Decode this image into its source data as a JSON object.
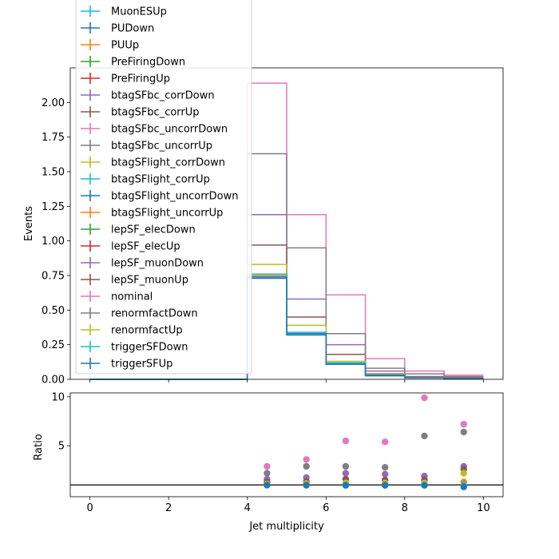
{
  "chart_data": [
    {
      "type": "step",
      "xlabel": "",
      "ylabel": "Events",
      "xlim": [
        -0.5,
        10.5
      ],
      "ylim": [
        0,
        2.25
      ],
      "bin_edges": [
        0,
        1,
        2,
        3,
        4,
        5,
        6,
        7,
        8,
        9,
        10
      ],
      "yticks": [
        "0.00",
        "0.25",
        "0.50",
        "0.75",
        "1.00",
        "1.25",
        "1.50",
        "1.75",
        "2.00"
      ],
      "series": [
        {
          "name": "MuonESUp",
          "color": "#17becf",
          "values": [
            0,
            0,
            0,
            0,
            0.74,
            0.33,
            0.11,
            0.03,
            0.01,
            0.005
          ]
        },
        {
          "name": "PUDown",
          "color": "#1f77b4",
          "values": [
            0,
            0,
            0,
            0,
            0.73,
            0.32,
            0.11,
            0.025,
            0.01,
            0.004
          ]
        },
        {
          "name": "PUUp",
          "color": "#ff7f0e",
          "values": [
            0,
            0,
            0,
            0,
            0.75,
            0.33,
            0.12,
            0.03,
            0.01,
            0.005
          ]
        },
        {
          "name": "PreFiringDown",
          "color": "#2ca02c",
          "values": [
            0,
            0,
            0,
            0,
            0.74,
            0.33,
            0.11,
            0.03,
            0.01,
            0.005
          ]
        },
        {
          "name": "PreFiringUp",
          "color": "#d62728",
          "values": [
            0,
            0,
            0,
            0,
            0.74,
            0.33,
            0.11,
            0.03,
            0.01,
            0.005
          ]
        },
        {
          "name": "btagSFbc_corrDown",
          "color": "#9467bd",
          "values": [
            0,
            0,
            0,
            0,
            1.19,
            0.58,
            0.25,
            0.06,
            0.02,
            0.014
          ]
        },
        {
          "name": "btagSFbc_corrUp",
          "color": "#8c564b",
          "values": [
            0,
            0,
            0,
            0,
            0.97,
            0.45,
            0.18,
            0.04,
            0.015,
            0.01
          ]
        },
        {
          "name": "btagSFbc_uncorrDown",
          "color": "#e377c2",
          "values": [
            0,
            0,
            0,
            0,
            2.14,
            1.19,
            0.61,
            0.15,
            0.06,
            0.03
          ]
        },
        {
          "name": "btagSFbc_uncorrUp",
          "color": "#7f7f7f",
          "values": [
            0,
            0,
            0,
            0,
            1.63,
            0.95,
            0.33,
            0.08,
            0.04,
            0.02
          ]
        },
        {
          "name": "btagSFlight_corrDown",
          "color": "#bcbd22",
          "values": [
            0,
            0,
            0,
            0,
            0.83,
            0.39,
            0.13,
            0.035,
            0.012,
            0.008
          ]
        },
        {
          "name": "btagSFlight_corrUp",
          "color": "#17becf",
          "values": [
            0,
            0,
            0,
            0,
            0.76,
            0.34,
            0.12,
            0.03,
            0.01,
            0.005
          ]
        },
        {
          "name": "btagSFlight_uncorrDown",
          "color": "#1f77b4",
          "values": [
            0,
            0,
            0,
            0,
            0.74,
            0.33,
            0.11,
            0.03,
            0.01,
            0.005
          ]
        },
        {
          "name": "btagSFlight_uncorrUp",
          "color": "#ff7f0e",
          "values": [
            0,
            0,
            0,
            0,
            0.74,
            0.33,
            0.11,
            0.03,
            0.01,
            0.005
          ]
        },
        {
          "name": "lepSF_elecDown",
          "color": "#2ca02c",
          "values": [
            0,
            0,
            0,
            0,
            0.74,
            0.33,
            0.11,
            0.03,
            0.01,
            0.005
          ]
        },
        {
          "name": "lepSF_elecUp",
          "color": "#d62728",
          "values": [
            0,
            0,
            0,
            0,
            0.74,
            0.33,
            0.11,
            0.03,
            0.01,
            0.005
          ]
        },
        {
          "name": "lepSF_muonDown",
          "color": "#9467bd",
          "values": [
            0,
            0,
            0,
            0,
            0.74,
            0.33,
            0.11,
            0.03,
            0.01,
            0.005
          ]
        },
        {
          "name": "lepSF_muonUp",
          "color": "#8c564b",
          "values": [
            0,
            0,
            0,
            0,
            0.74,
            0.33,
            0.11,
            0.03,
            0.01,
            0.005
          ]
        },
        {
          "name": "nominal",
          "color": "#e377c2",
          "values": [
            0,
            0,
            0,
            0,
            0.74,
            0.33,
            0.11,
            0.03,
            0.01,
            0.005
          ]
        },
        {
          "name": "renormfactDown",
          "color": "#7f7f7f",
          "values": [
            0,
            0,
            0,
            0,
            0.74,
            0.33,
            0.11,
            0.03,
            0.01,
            0.005
          ]
        },
        {
          "name": "renormfactUp",
          "color": "#bcbd22",
          "values": [
            0,
            0,
            0,
            0,
            0.74,
            0.33,
            0.11,
            0.03,
            0.01,
            0.005
          ]
        },
        {
          "name": "triggerSFDown",
          "color": "#17becf",
          "values": [
            0,
            0,
            0,
            0,
            0.74,
            0.33,
            0.11,
            0.03,
            0.01,
            0.005
          ]
        },
        {
          "name": "triggerSFUp",
          "color": "#1f77b4",
          "values": [
            0,
            0,
            0,
            0,
            0.74,
            0.33,
            0.11,
            0.03,
            0.01,
            0.005
          ]
        }
      ],
      "legend": "upper-left"
    },
    {
      "type": "scatter",
      "xlabel": "Jet multiplicity",
      "ylabel": "Ratio",
      "xlim": [
        -0.5,
        10.5
      ],
      "ylim": [
        -0.2,
        10.4
      ],
      "xticks": [
        "0",
        "2",
        "4",
        "6",
        "8",
        "10"
      ],
      "yticks": [
        "5",
        "10"
      ],
      "reference_line": 1,
      "points": [
        {
          "x": 4.5,
          "y": 2.9,
          "color": "#e377c2"
        },
        {
          "x": 4.5,
          "y": 2.2,
          "color": "#7f7f7f"
        },
        {
          "x": 4.5,
          "y": 1.6,
          "color": "#9467bd"
        },
        {
          "x": 4.5,
          "y": 1.3,
          "color": "#8c564b"
        },
        {
          "x": 4.5,
          "y": 1.1,
          "color": "#bcbd22"
        },
        {
          "x": 4.5,
          "y": 1.0,
          "color": "#17becf"
        },
        {
          "x": 4.5,
          "y": 0.98,
          "color": "#1f77b4"
        },
        {
          "x": 5.5,
          "y": 3.6,
          "color": "#e377c2"
        },
        {
          "x": 5.5,
          "y": 2.9,
          "color": "#7f7f7f"
        },
        {
          "x": 5.5,
          "y": 1.75,
          "color": "#9467bd"
        },
        {
          "x": 5.5,
          "y": 1.35,
          "color": "#8c564b"
        },
        {
          "x": 5.5,
          "y": 1.15,
          "color": "#bcbd22"
        },
        {
          "x": 5.5,
          "y": 1.0,
          "color": "#17becf"
        },
        {
          "x": 5.5,
          "y": 0.97,
          "color": "#1f77b4"
        },
        {
          "x": 6.5,
          "y": 5.5,
          "color": "#e377c2"
        },
        {
          "x": 6.5,
          "y": 2.9,
          "color": "#7f7f7f"
        },
        {
          "x": 6.5,
          "y": 2.2,
          "color": "#9467bd"
        },
        {
          "x": 6.5,
          "y": 1.6,
          "color": "#8c564b"
        },
        {
          "x": 6.5,
          "y": 1.2,
          "color": "#bcbd22"
        },
        {
          "x": 6.5,
          "y": 1.0,
          "color": "#17becf"
        },
        {
          "x": 6.5,
          "y": 0.96,
          "color": "#1f77b4"
        },
        {
          "x": 7.5,
          "y": 5.4,
          "color": "#e377c2"
        },
        {
          "x": 7.5,
          "y": 2.8,
          "color": "#7f7f7f"
        },
        {
          "x": 7.5,
          "y": 2.1,
          "color": "#9467bd"
        },
        {
          "x": 7.5,
          "y": 1.5,
          "color": "#8c564b"
        },
        {
          "x": 7.5,
          "y": 1.2,
          "color": "#bcbd22"
        },
        {
          "x": 7.5,
          "y": 1.0,
          "color": "#17becf"
        },
        {
          "x": 7.5,
          "y": 0.96,
          "color": "#1f77b4"
        },
        {
          "x": 8.5,
          "y": 9.9,
          "color": "#e377c2"
        },
        {
          "x": 8.5,
          "y": 6.0,
          "color": "#7f7f7f"
        },
        {
          "x": 8.5,
          "y": 1.9,
          "color": "#9467bd"
        },
        {
          "x": 8.5,
          "y": 1.5,
          "color": "#8c564b"
        },
        {
          "x": 8.5,
          "y": 1.2,
          "color": "#bcbd22"
        },
        {
          "x": 8.5,
          "y": 1.0,
          "color": "#17becf"
        },
        {
          "x": 8.5,
          "y": 0.96,
          "color": "#1f77b4"
        },
        {
          "x": 9.5,
          "y": 7.2,
          "color": "#e377c2"
        },
        {
          "x": 9.5,
          "y": 6.4,
          "color": "#7f7f7f"
        },
        {
          "x": 9.5,
          "y": 2.9,
          "color": "#9467bd"
        },
        {
          "x": 9.5,
          "y": 2.6,
          "color": "#8c564b"
        },
        {
          "x": 9.5,
          "y": 2.2,
          "color": "#bcbd22"
        },
        {
          "x": 9.5,
          "y": 1.3,
          "color": "#ff7f0e"
        },
        {
          "x": 9.5,
          "y": 1.0,
          "color": "#17becf"
        },
        {
          "x": 9.5,
          "y": 0.8,
          "color": "#1f77b4"
        }
      ]
    }
  ]
}
